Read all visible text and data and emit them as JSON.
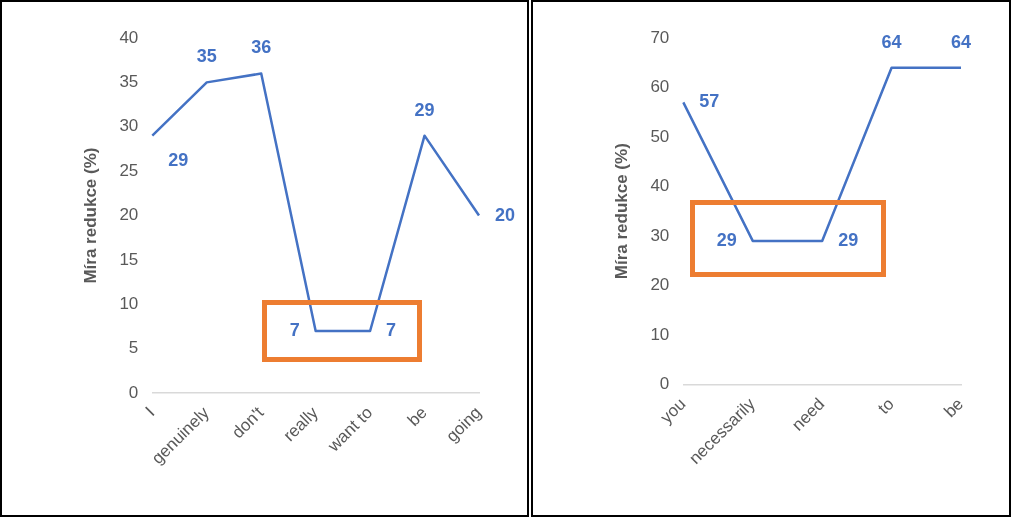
{
  "chart_data": [
    {
      "type": "line",
      "ylabel": "Míra redukce (%)",
      "categories": [
        "I",
        "genuinely",
        "don't",
        "really",
        "want to",
        "be",
        "going"
      ],
      "series": [
        {
          "color": "#4472c4",
          "values": [
            29,
            35,
            36,
            7,
            7,
            29,
            20
          ]
        }
      ],
      "ylim": [
        0,
        40
      ],
      "yticks": [
        0,
        5,
        10,
        15,
        20,
        25,
        30,
        35,
        40
      ],
      "data_labels": true,
      "grid": false,
      "legend": false,
      "marker": "none"
    },
    {
      "type": "line",
      "ylabel": "Míra redukce (%)",
      "categories": [
        "you",
        "necessarily",
        "need",
        "to",
        "be"
      ],
      "series": [
        {
          "color": "#4472c4",
          "values": [
            57,
            29,
            29,
            64,
            64
          ]
        }
      ],
      "ylim": [
        0,
        70
      ],
      "yticks": [
        0,
        10,
        20,
        30,
        40,
        50,
        60,
        70
      ],
      "data_labels": true,
      "grid": false,
      "legend": false,
      "marker": "none"
    }
  ]
}
